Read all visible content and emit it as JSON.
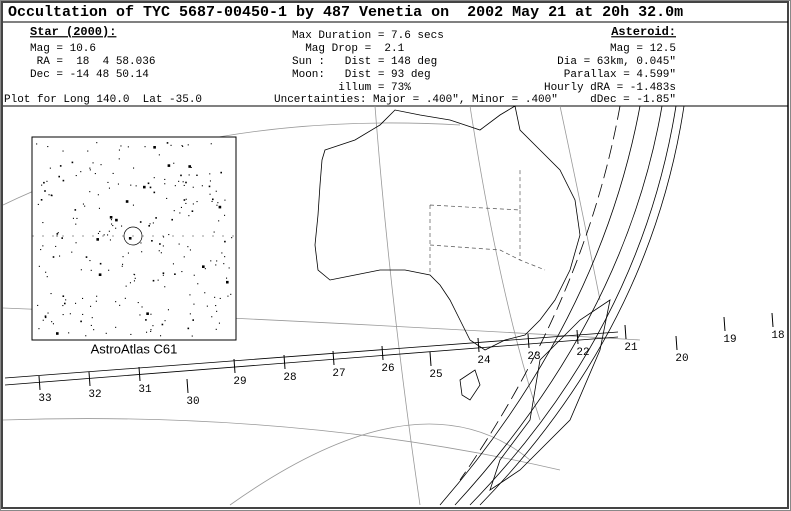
{
  "title": "Occultation of TYC 5687-00450-1 by 487 Venetia on  2002 May 21 at 20h 32.0m",
  "star": {
    "heading": "Star (2000):",
    "lines": [
      "Mag = 10.6",
      " RA =  18  4 58.036",
      "Dec = -14 48 50.14"
    ]
  },
  "event": {
    "lines": [
      "Max Duration = 7.6 secs",
      "  Mag Drop =  2.1",
      "Sun :   Dist = 148 deg",
      "Moon:   Dist = 93 deg",
      "       illum = 73%"
    ]
  },
  "asteroid": {
    "heading": "Asteroid:",
    "lines": [
      "Mag = 12.5",
      "Dia = 63km, 0.045\"",
      "Parallax = 4.599\"",
      "Hourly dRA = -1.483s",
      "dDec = -1.85\""
    ]
  },
  "footer": {
    "plot": "Plot for Long 140.0  Lat -35.0",
    "uncertainties": "Uncertainties: Major = .400\", Minor = .400\""
  },
  "inset": {
    "label": "AstroAtlas C61"
  },
  "time_labels": [
    "33",
    "32",
    "31",
    "30",
    "29",
    "28",
    "27",
    "26",
    "25",
    "24",
    "23",
    "22",
    "21",
    "20",
    "19",
    "18"
  ]
}
